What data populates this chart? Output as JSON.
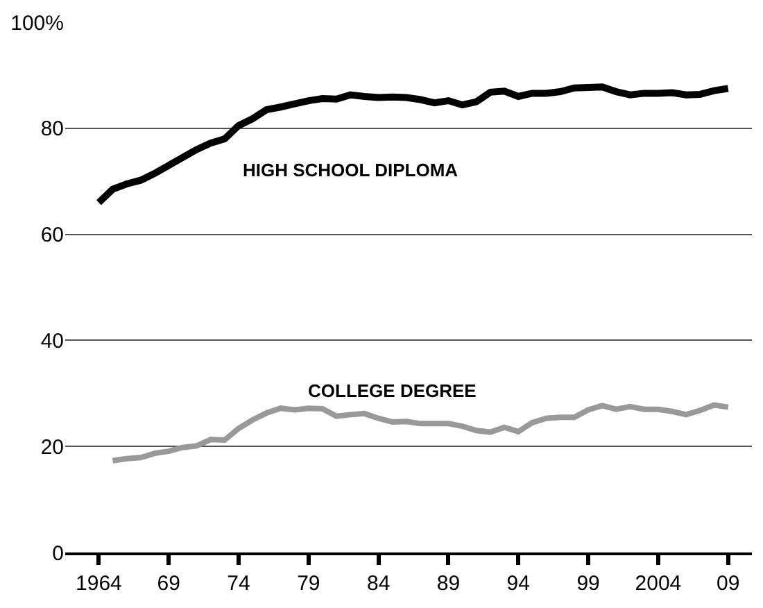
{
  "chart_data": {
    "type": "line",
    "x": [
      1964,
      1965,
      1966,
      1967,
      1968,
      1969,
      1970,
      1971,
      1972,
      1973,
      1974,
      1975,
      1976,
      1977,
      1978,
      1979,
      1980,
      1981,
      1982,
      1983,
      1984,
      1985,
      1986,
      1987,
      1988,
      1989,
      1990,
      1991,
      1992,
      1993,
      1994,
      1995,
      1996,
      1997,
      1998,
      1999,
      2000,
      2001,
      2002,
      2003,
      2004,
      2005,
      2006,
      2007,
      2008,
      2009
    ],
    "series": [
      {
        "name": "HIGH SCHOOL DIPLOMA",
        "color": "#000000",
        "values": [
          66,
          68.5,
          69.5,
          70.2,
          71.5,
          73,
          74.5,
          76,
          77.2,
          78,
          80.5,
          81.8,
          83.5,
          84,
          84.6,
          85.2,
          85.6,
          85.5,
          86.3,
          86,
          85.8,
          85.9,
          85.8,
          85.4,
          84.8,
          85.2,
          84.4,
          85,
          86.8,
          87,
          86,
          86.6,
          86.6,
          86.9,
          87.6,
          87.7,
          87.8,
          86.9,
          86.3,
          86.6,
          86.6,
          86.7,
          86.3,
          86.4,
          87.1,
          87.5
        ]
      },
      {
        "name": "COLLEGE DEGREE",
        "color": "#999999",
        "values": [
          null,
          17.3,
          17.7,
          17.9,
          18.7,
          19.1,
          19.8,
          20.1,
          21.3,
          21.2,
          23.4,
          25,
          26.3,
          27.2,
          26.9,
          27.2,
          27.1,
          25.7,
          26,
          26.2,
          25.3,
          24.6,
          24.7,
          24.3,
          24.3,
          24.3,
          23.8,
          23,
          22.7,
          23.6,
          22.8,
          24.5,
          25.3,
          25.5,
          25.5,
          26.9,
          27.7,
          27,
          27.5,
          27,
          27,
          26.6,
          26,
          26.8,
          27.8,
          27.4
        ]
      }
    ],
    "xlim": [
      1961.6,
      2010.7
    ],
    "xticks": [
      1964,
      {
        "value": 1969,
        "label": "69"
      },
      {
        "value": 1974,
        "label": "74"
      },
      {
        "value": 1979,
        "label": "79"
      },
      {
        "value": 1984,
        "label": "84"
      },
      {
        "value": 1989,
        "label": "89"
      },
      {
        "value": 1994,
        "label": "94"
      },
      {
        "value": 1999,
        "label": "99"
      },
      2004,
      {
        "value": 2009,
        "label": "09"
      }
    ],
    "ylim": [
      0,
      100
    ],
    "yticks": [
      0,
      20,
      40,
      60,
      80,
      {
        "value": 100,
        "label": "100%"
      }
    ],
    "grid": "y",
    "legend": false,
    "marker": "none",
    "line_style": "solid"
  }
}
